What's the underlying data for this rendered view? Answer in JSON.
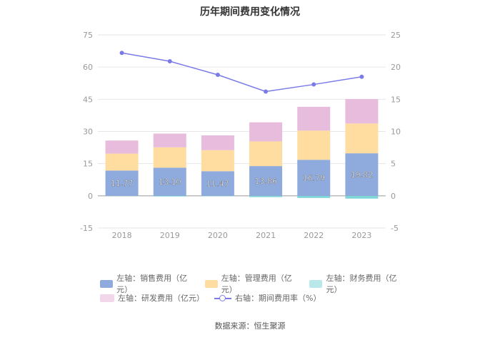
{
  "title": "历年期间费用变化情况",
  "source": "数据来源：恒生聚源",
  "colors": {
    "sales": "#8faadc",
    "management": "#ffdca0",
    "finance": "#7fd6d9",
    "rnd": "#e8bcdc",
    "rate": "#7b7be8",
    "grid": "#e6e6e6",
    "axis_text": "#999999"
  },
  "legend": {
    "sales": "左轴：销售费用（亿元）",
    "management": "左轴：管理费用（亿元）",
    "finance": "左轴：财务费用（亿元）",
    "rnd": "左轴：研发费用（亿元）",
    "rate": "右轴：期间费用率（%）"
  },
  "chart_data": {
    "type": "bar",
    "stacked": true,
    "categories": [
      "2018",
      "2019",
      "2020",
      "2021",
      "2022",
      "2023"
    ],
    "series": [
      {
        "name": "销售费用",
        "axis": "left",
        "values": [
          11.77,
          13.1,
          11.47,
          13.86,
          16.79,
          19.82
        ],
        "labels": [
          "11.77",
          "13.10",
          "11.47",
          "13.86",
          "16.79",
          "19.82"
        ]
      },
      {
        "name": "管理费用",
        "axis": "left",
        "values": [
          7.9,
          9.5,
          9.8,
          11.5,
          13.6,
          13.9
        ]
      },
      {
        "name": "财务费用",
        "axis": "left",
        "values": [
          -0.1,
          -0.3,
          -0.2,
          -0.6,
          -1.0,
          -1.3
        ]
      },
      {
        "name": "研发费用",
        "axis": "left",
        "values": [
          6.1,
          6.4,
          6.9,
          8.9,
          11.1,
          11.4
        ]
      },
      {
        "name": "期间费用率",
        "axis": "right",
        "type": "line",
        "values": [
          22.2,
          20.9,
          18.8,
          16.2,
          17.3,
          18.5
        ]
      }
    ],
    "left_axis": {
      "min": -15,
      "max": 75,
      "ticks": [
        "75",
        "60",
        "45",
        "30",
        "15",
        "0",
        "-15"
      ]
    },
    "right_axis": {
      "min": -5,
      "max": 25,
      "ticks": [
        "25",
        "20",
        "15",
        "10",
        "5",
        "0",
        "-5"
      ]
    },
    "xlabel": "",
    "ylabel": ""
  }
}
